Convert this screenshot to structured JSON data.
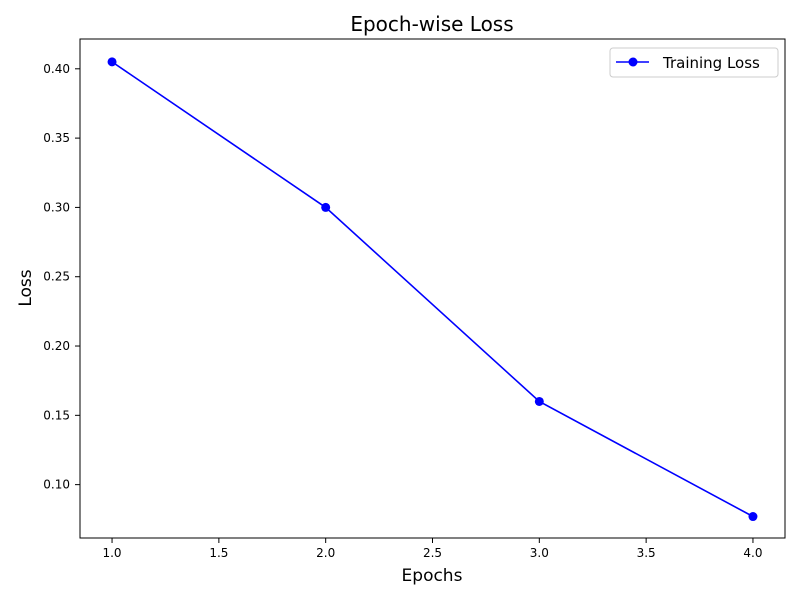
{
  "chart_data": {
    "type": "line",
    "title": "Epoch-wise Loss",
    "xlabel": "Epochs",
    "ylabel": "Loss",
    "xlim": [
      0.85,
      4.15
    ],
    "ylim": [
      0.0615,
      0.4215
    ],
    "x_ticks": [
      1.0,
      1.5,
      2.0,
      2.5,
      3.0,
      3.5,
      4.0
    ],
    "x_tick_labels": [
      "1.0",
      "1.5",
      "2.0",
      "2.5",
      "3.0",
      "3.5",
      "4.0"
    ],
    "y_ticks": [
      0.1,
      0.15,
      0.2,
      0.25,
      0.3,
      0.35,
      0.4
    ],
    "y_tick_labels": [
      "0.10",
      "0.15",
      "0.20",
      "0.25",
      "0.30",
      "0.35",
      "0.40"
    ],
    "grid": false,
    "legend_position": "top-right",
    "series": [
      {
        "name": "Training Loss",
        "color": "#0000ff",
        "marker": "circle",
        "x": [
          1,
          2,
          3,
          4
        ],
        "y": [
          0.405,
          0.3,
          0.16,
          0.077
        ]
      }
    ]
  }
}
